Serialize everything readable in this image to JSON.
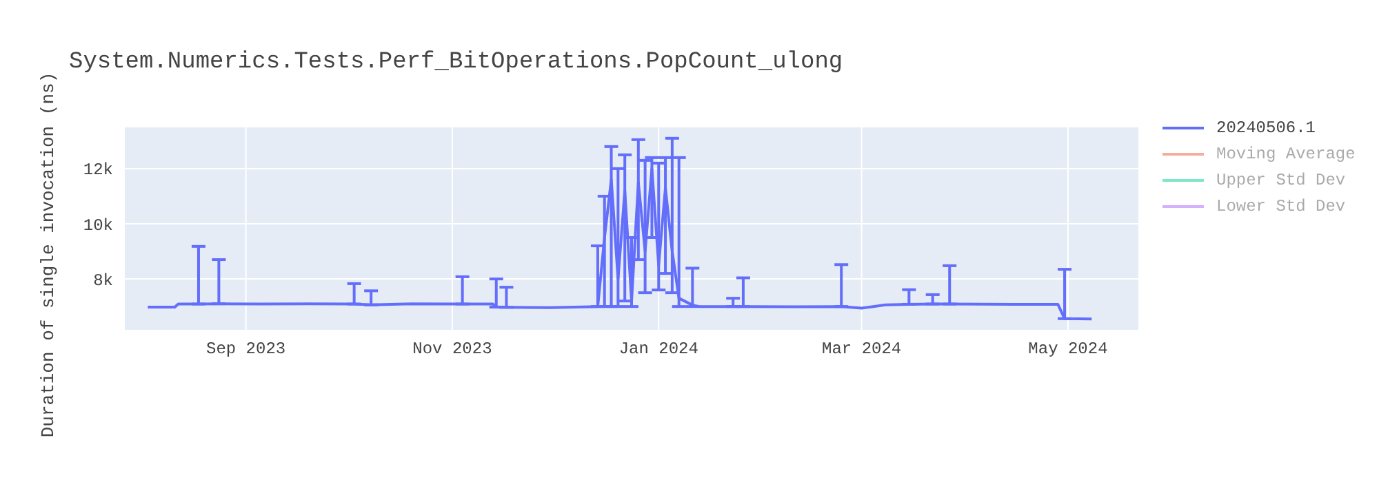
{
  "chart_data": {
    "type": "line",
    "title": "System.Numerics.Tests.Perf_BitOperations.PopCount_ulong",
    "ylabel": "Duration of single invocation (ns)",
    "x": [
      "2023-08-03",
      "2023-08-11",
      "2023-08-12",
      "2023-08-18",
      "2023-08-24",
      "2023-09-05",
      "2023-09-20",
      "2023-10-03",
      "2023-10-08",
      "2023-10-20",
      "2023-11-04",
      "2023-11-13",
      "2023-11-14",
      "2023-11-17",
      "2023-11-30",
      "2023-12-12",
      "2023-12-14",
      "2023-12-16",
      "2023-12-18",
      "2023-12-20",
      "2023-12-22",
      "2023-12-24",
      "2023-12-26",
      "2023-12-28",
      "2023-12-30",
      "2024-01-01",
      "2024-01-03",
      "2024-01-05",
      "2024-01-07",
      "2024-01-11",
      "2024-01-13",
      "2024-01-23",
      "2024-01-26",
      "2024-02-10",
      "2024-02-24",
      "2024-03-01",
      "2024-03-08",
      "2024-03-15",
      "2024-03-22",
      "2024-03-27",
      "2024-04-15",
      "2024-04-28",
      "2024-04-30",
      "2024-05-08"
    ],
    "series": [
      {
        "name": "20240506.1",
        "color": "#636efa",
        "values": [
          6980,
          6980,
          7090,
          7090,
          7100,
          7090,
          7100,
          7090,
          7060,
          7100,
          7090,
          7090,
          6980,
          6970,
          6960,
          6990,
          7000,
          9500,
          11600,
          8000,
          11200,
          7200,
          11500,
          9000,
          12000,
          8500,
          11300,
          9000,
          7300,
          7050,
          7000,
          7000,
          7000,
          6990,
          7000,
          6940,
          7060,
          7080,
          7090,
          7090,
          7080,
          7080,
          6560,
          6550
        ],
        "errors": [
          null,
          null,
          null,
          [
            7090,
            9180
          ],
          [
            7100,
            8700
          ],
          null,
          null,
          [
            7090,
            7830
          ],
          [
            7060,
            7570
          ],
          null,
          [
            7090,
            8080
          ],
          null,
          [
            6980,
            8000
          ],
          [
            6970,
            7700
          ],
          null,
          null,
          [
            7000,
            9200
          ],
          [
            7000,
            11000
          ],
          [
            7000,
            12800
          ],
          [
            7000,
            12000
          ],
          [
            7200,
            12500
          ],
          [
            7000,
            9500
          ],
          [
            8700,
            13050
          ],
          [
            7500,
            12300
          ],
          [
            9500,
            12400
          ],
          [
            7600,
            12200
          ],
          [
            8200,
            12400
          ],
          [
            7500,
            13100
          ],
          [
            7000,
            12400
          ],
          [
            7000,
            8390
          ],
          null,
          [
            7000,
            7300
          ],
          [
            7000,
            8040
          ],
          null,
          [
            7000,
            8520
          ],
          null,
          null,
          [
            7080,
            7610
          ],
          [
            7090,
            7430
          ],
          [
            7090,
            8480
          ],
          null,
          null,
          [
            6560,
            8350
          ],
          null
        ]
      },
      {
        "name": "Moving Average",
        "color": "#f5ab9d",
        "values": [
          null,
          null,
          null,
          null,
          null,
          null,
          null,
          null,
          null,
          null,
          null,
          null,
          null,
          null,
          null,
          null,
          null,
          null,
          null,
          null,
          null,
          null,
          null,
          null,
          null,
          null,
          null,
          null,
          null,
          null,
          null,
          null,
          null,
          null,
          null,
          null,
          null,
          null,
          null,
          null,
          null,
          null,
          null,
          null
        ]
      },
      {
        "name": "Upper Std Dev",
        "color": "#80e5cb",
        "values": [
          null,
          null,
          null,
          null,
          null,
          null,
          null,
          null,
          null,
          null,
          null,
          null,
          null,
          null,
          null,
          null,
          null,
          null,
          null,
          null,
          null,
          null,
          null,
          null,
          null,
          null,
          null,
          null,
          null,
          null,
          null,
          null,
          null,
          null,
          null,
          null,
          null,
          null,
          null,
          null,
          null,
          null,
          null,
          null
        ]
      },
      {
        "name": "Lower Std Dev",
        "color": "#d5b1fd",
        "values": [
          null,
          null,
          null,
          null,
          null,
          null,
          null,
          null,
          null,
          null,
          null,
          null,
          null,
          null,
          null,
          null,
          null,
          null,
          null,
          null,
          null,
          null,
          null,
          null,
          null,
          null,
          null,
          null,
          null,
          null,
          null,
          null,
          null,
          null,
          null,
          null,
          null,
          null,
          null,
          null,
          null,
          null,
          null,
          null
        ]
      }
    ],
    "xlim": [
      "2023-07-27",
      "2024-05-22"
    ],
    "xticks": [
      {
        "value": "2023-09-01",
        "label": "Sep 2023"
      },
      {
        "value": "2023-11-01",
        "label": "Nov 2023"
      },
      {
        "value": "2024-01-01",
        "label": "Jan 2024"
      },
      {
        "value": "2024-03-01",
        "label": "Mar 2024"
      },
      {
        "value": "2024-05-01",
        "label": "May 2024"
      }
    ],
    "ylim": [
      6130,
      13520
    ],
    "yticks": [
      {
        "value": 8000,
        "label": "8k"
      },
      {
        "value": 10000,
        "label": "10k"
      },
      {
        "value": 12000,
        "label": "12k"
      }
    ],
    "grid": true,
    "legend": "top right",
    "marker": "none",
    "line_style": "solid"
  }
}
